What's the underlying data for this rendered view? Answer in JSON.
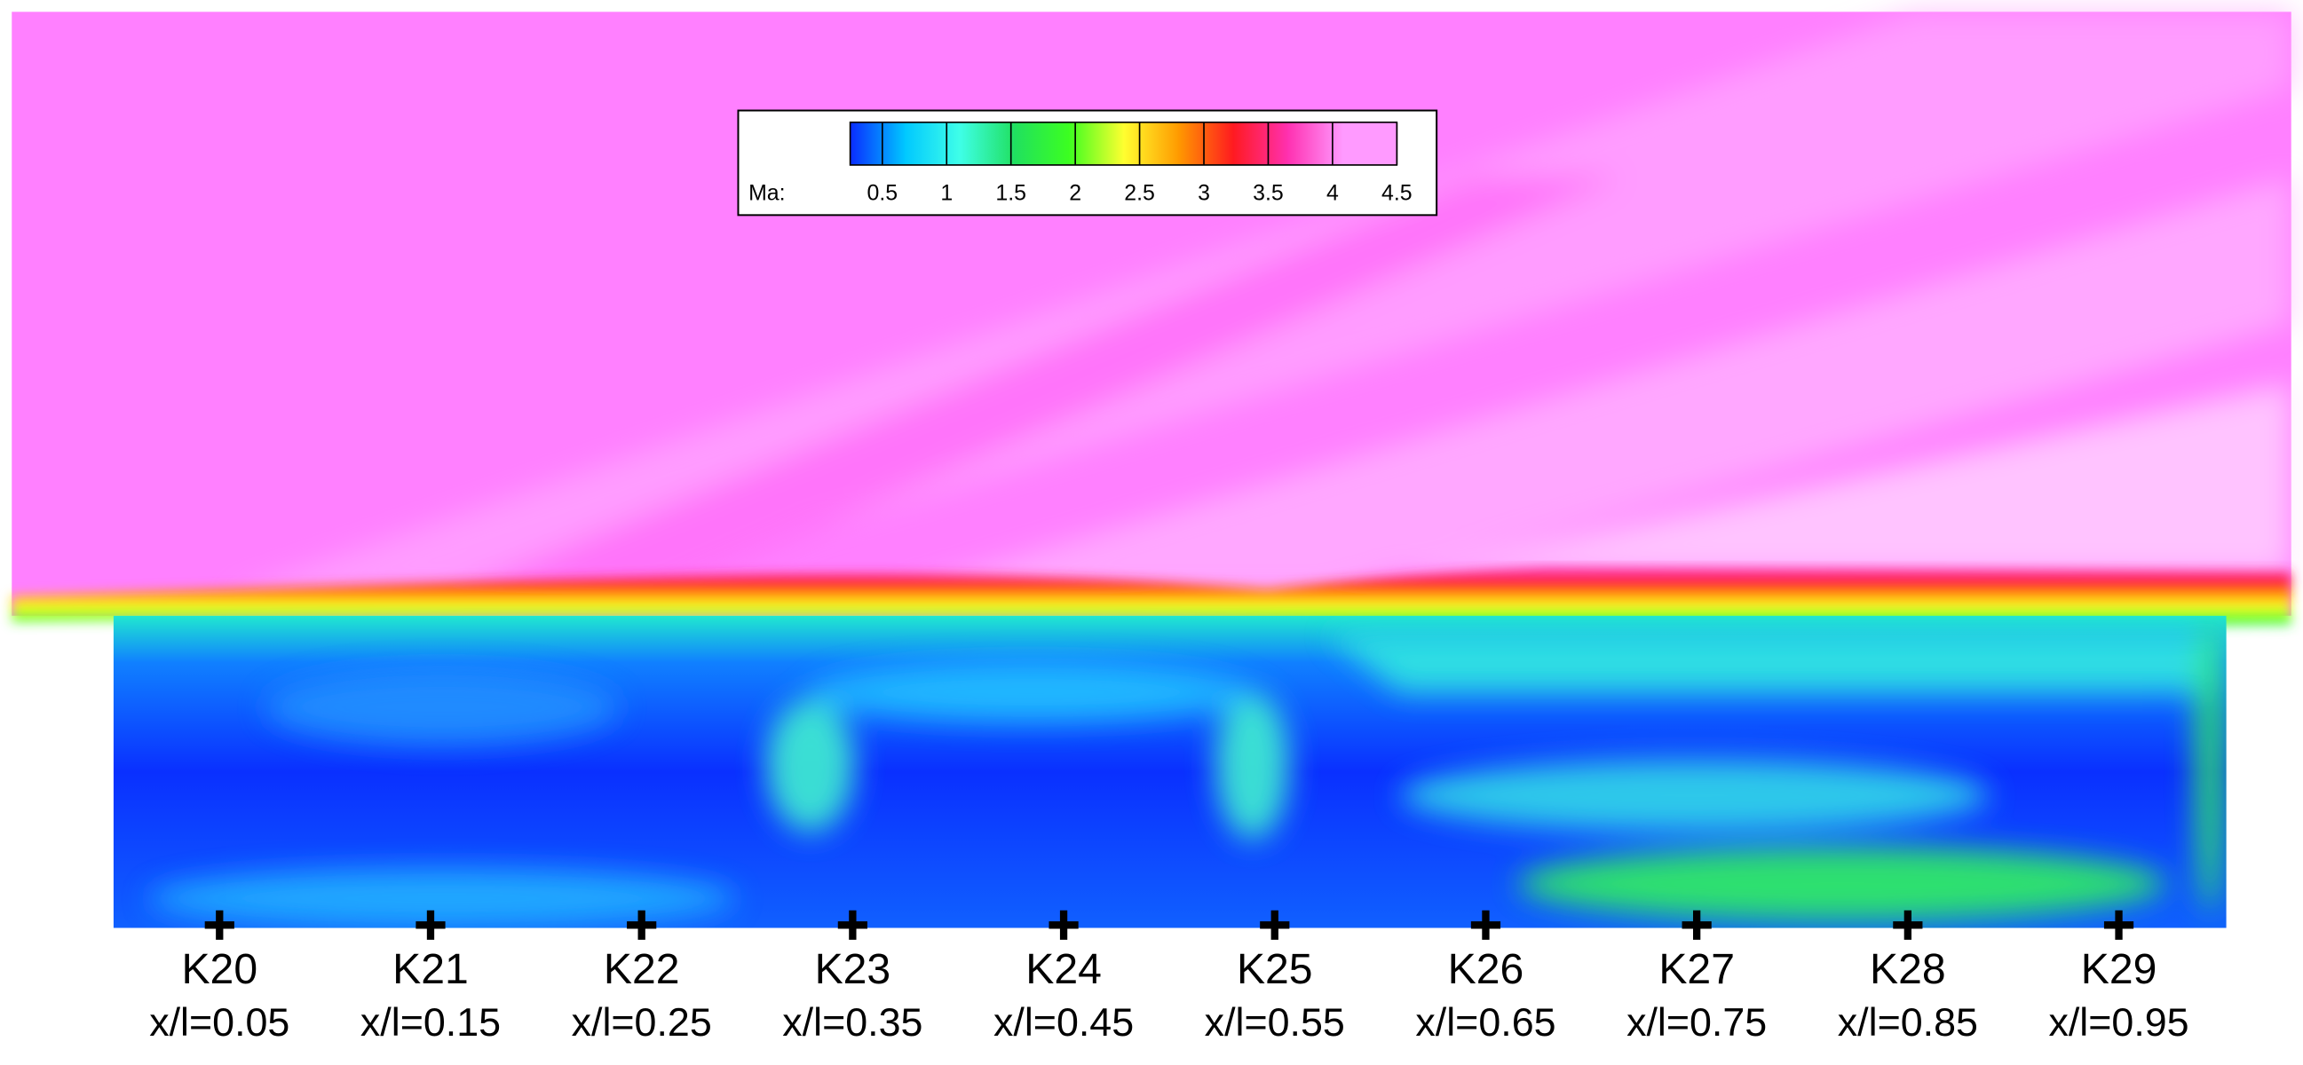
{
  "colorbar": {
    "label": "Ma:",
    "range": [
      0.25,
      4.5
    ],
    "ticks": [
      0.5,
      1,
      1.5,
      2,
      2.5,
      3,
      3.5,
      4,
      4.5
    ],
    "colors": [
      "#0a2cff",
      "#00c8ff",
      "#3fffe8",
      "#20e060",
      "#3cff20",
      "#ffff30",
      "#ff9a00",
      "#ff1a20",
      "#ff30b0",
      "#ff9aff"
    ]
  },
  "probes": [
    {
      "name": "K20",
      "position": "x/l=0.05"
    },
    {
      "name": "K21",
      "position": "x/l=0.15"
    },
    {
      "name": "K22",
      "position": "x/l=0.25"
    },
    {
      "name": "K23",
      "position": "x/l=0.35"
    },
    {
      "name": "K24",
      "position": "x/l=0.45"
    },
    {
      "name": "K25",
      "position": "x/l=0.55"
    },
    {
      "name": "K26",
      "position": "x/l=0.65"
    },
    {
      "name": "K27",
      "position": "x/l=0.75"
    },
    {
      "name": "K28",
      "position": "x/l=0.85"
    },
    {
      "name": "K29",
      "position": "x/l=0.95"
    }
  ]
}
